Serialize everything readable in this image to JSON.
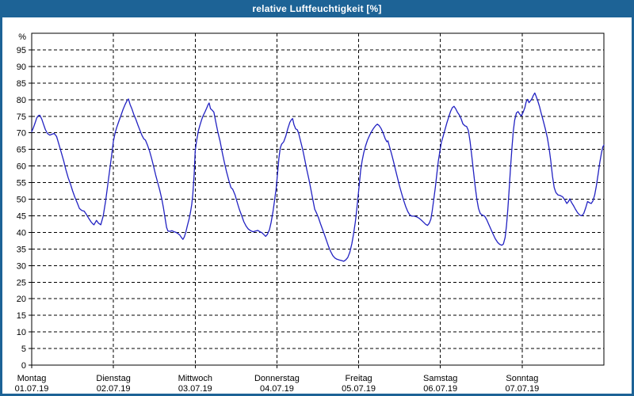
{
  "colors": {
    "titlebar_bg": "#1d6396",
    "title_text": "#ffffff",
    "frame": "#1d6396",
    "plot_bg": "#ffffff",
    "grid": "#000000",
    "axis": "#000000",
    "tick_text": "#000000",
    "line": "#2222c2"
  },
  "chart_data": {
    "type": "line",
    "title": "relative Luftfeuchtigkeit [%]",
    "ylabel": "%",
    "ylim": [
      0,
      100
    ],
    "y_tick_step": 5,
    "y_tick_labels": [
      "0",
      "5",
      "10",
      "15",
      "20",
      "25",
      "30",
      "35",
      "40",
      "45",
      "50",
      "55",
      "60",
      "65",
      "70",
      "75",
      "80",
      "85",
      "90",
      "95"
    ],
    "y_unit_label": "%",
    "xlim_hours": [
      0,
      168
    ],
    "grid": true,
    "legend_position": "none",
    "x_ticks": [
      {
        "label": "Montag",
        "date": "01.07.19"
      },
      {
        "label": "Dienstag",
        "date": "02.07.19"
      },
      {
        "label": "Mittwoch",
        "date": "03.07.19"
      },
      {
        "label": "Donnerstag",
        "date": "04.07.19"
      },
      {
        "label": "Freitag",
        "date": "05.07.19"
      },
      {
        "label": "Samstag",
        "date": "06.07.19"
      },
      {
        "label": "Sonntag",
        "date": "07.07.19"
      }
    ],
    "series": [
      {
        "name": "relative Luftfeuchtigkeit",
        "points": [
          [
            0,
            70.3
          ],
          [
            0.5,
            71.5
          ],
          [
            1,
            73
          ],
          [
            1.5,
            74.5
          ],
          [
            2,
            75.2
          ],
          [
            2.4,
            75.3
          ],
          [
            3,
            74
          ],
          [
            3.5,
            72.5
          ],
          [
            4,
            71
          ],
          [
            4.6,
            69.8
          ],
          [
            5.3,
            69.3
          ],
          [
            6,
            69.6
          ],
          [
            6.6,
            69.8
          ],
          [
            7.3,
            68.9
          ],
          [
            8,
            66.5
          ],
          [
            8.7,
            64
          ],
          [
            9.4,
            61.5
          ],
          [
            10,
            59
          ],
          [
            10.7,
            56.5
          ],
          [
            11.4,
            54.5
          ],
          [
            12,
            52.5
          ],
          [
            12.7,
            50.5
          ],
          [
            13.4,
            48.8
          ],
          [
            14,
            47.2
          ],
          [
            14.7,
            46.6
          ],
          [
            15.4,
            46.4
          ],
          [
            16,
            45.5
          ],
          [
            16.7,
            44.3
          ],
          [
            17.4,
            43.2
          ],
          [
            17.9,
            42.6
          ],
          [
            18.3,
            42.3
          ],
          [
            19,
            43.6
          ],
          [
            19.6,
            42.8
          ],
          [
            20.3,
            42.3
          ],
          [
            21,
            45
          ],
          [
            21.7,
            49.5
          ],
          [
            22.3,
            54
          ],
          [
            23,
            59.5
          ],
          [
            23.5,
            63.5
          ],
          [
            24,
            67.5
          ],
          [
            24.5,
            70
          ],
          [
            25,
            71.7
          ],
          [
            25.6,
            73.5
          ],
          [
            26.2,
            75.2
          ],
          [
            26.8,
            77
          ],
          [
            27.4,
            78.5
          ],
          [
            28,
            79.7
          ],
          [
            28.4,
            80.2
          ],
          [
            28.9,
            78.5
          ],
          [
            29.4,
            77.3
          ],
          [
            30,
            75.5
          ],
          [
            30.6,
            74
          ],
          [
            31.2,
            72.3
          ],
          [
            31.8,
            70.7
          ],
          [
            32.4,
            69.2
          ],
          [
            32.9,
            68.2
          ],
          [
            33.4,
            67.8
          ],
          [
            34,
            66.3
          ],
          [
            34.6,
            64.5
          ],
          [
            35.2,
            62.3
          ],
          [
            35.8,
            59.8
          ],
          [
            36.4,
            57.3
          ],
          [
            37,
            55
          ],
          [
            37.6,
            52.7
          ],
          [
            38.2,
            50
          ],
          [
            38.7,
            47.3
          ],
          [
            39.2,
            44
          ],
          [
            39.6,
            41.5
          ],
          [
            40,
            40.4
          ],
          [
            40.6,
            40.3
          ],
          [
            41.2,
            40.5
          ],
          [
            41.8,
            40.2
          ],
          [
            42.4,
            40
          ],
          [
            43,
            39.6
          ],
          [
            43.5,
            39.2
          ],
          [
            44,
            38.4
          ],
          [
            44.4,
            37.9
          ],
          [
            44.8,
            38.6
          ],
          [
            45.2,
            39.9
          ],
          [
            45.7,
            42
          ],
          [
            46.2,
            44
          ],
          [
            46.6,
            46
          ],
          [
            47,
            48.5
          ],
          [
            47.3,
            51.5
          ],
          [
            47.7,
            57.5
          ],
          [
            48,
            64.5
          ],
          [
            48.4,
            67.5
          ],
          [
            48.9,
            70.5
          ],
          [
            49.4,
            72.3
          ],
          [
            49.9,
            74
          ],
          [
            50.4,
            75.3
          ],
          [
            50.9,
            76.3
          ],
          [
            51.4,
            77.5
          ],
          [
            51.8,
            78.5
          ],
          [
            52.1,
            79
          ],
          [
            52.5,
            77.3
          ],
          [
            53,
            76.8
          ],
          [
            53.5,
            76.2
          ],
          [
            54,
            73.5
          ],
          [
            54.7,
            70
          ],
          [
            55.3,
            67.5
          ],
          [
            56,
            63.8
          ],
          [
            56.6,
            61
          ],
          [
            57.2,
            58.3
          ],
          [
            57.9,
            55.6
          ],
          [
            58.5,
            53.5
          ],
          [
            59,
            53
          ],
          [
            59.7,
            51.3
          ],
          [
            60.4,
            48.8
          ],
          [
            61,
            46.8
          ],
          [
            61.7,
            44.9
          ],
          [
            62.3,
            43.2
          ],
          [
            63,
            41.8
          ],
          [
            63.6,
            41
          ],
          [
            64.3,
            40.5
          ],
          [
            65,
            40.2
          ],
          [
            65.7,
            40.4
          ],
          [
            66.4,
            40.6
          ],
          [
            67,
            40.2
          ],
          [
            67.6,
            39.9
          ],
          [
            68.2,
            39.3
          ],
          [
            68.7,
            38.8
          ],
          [
            69.2,
            39.4
          ],
          [
            69.8,
            40.8
          ],
          [
            70.3,
            43
          ],
          [
            70.8,
            46
          ],
          [
            71.3,
            49.5
          ],
          [
            71.8,
            53.5
          ],
          [
            72.2,
            58
          ],
          [
            72.6,
            62.5
          ],
          [
            73,
            65.5
          ],
          [
            73.4,
            66.6
          ],
          [
            74,
            67.3
          ],
          [
            74.6,
            69
          ],
          [
            75.2,
            71.3
          ],
          [
            75.8,
            73.2
          ],
          [
            76.3,
            74
          ],
          [
            76.6,
            74.3
          ],
          [
            77,
            72.5
          ],
          [
            77.5,
            71.2
          ],
          [
            78,
            70.9
          ],
          [
            78.4,
            69.8
          ],
          [
            79,
            67.3
          ],
          [
            79.6,
            64.8
          ],
          [
            80.2,
            61.8
          ],
          [
            80.8,
            58.8
          ],
          [
            81.4,
            56
          ],
          [
            82,
            52.8
          ],
          [
            82.6,
            49.6
          ],
          [
            83.1,
            47
          ],
          [
            83.6,
            45.9
          ],
          [
            84.2,
            44.4
          ],
          [
            84.8,
            42.6
          ],
          [
            85.4,
            40.9
          ],
          [
            86,
            39.2
          ],
          [
            86.6,
            37.4
          ],
          [
            87.2,
            35.6
          ],
          [
            87.8,
            34.2
          ],
          [
            88.4,
            33
          ],
          [
            89,
            32.3
          ],
          [
            89.6,
            31.9
          ],
          [
            90.3,
            31.7
          ],
          [
            91,
            31.5
          ],
          [
            91.6,
            31.3
          ],
          [
            92.2,
            31.7
          ],
          [
            92.8,
            32.4
          ],
          [
            93.4,
            34
          ],
          [
            94,
            36.6
          ],
          [
            94.5,
            39.5
          ],
          [
            95,
            43
          ],
          [
            95.4,
            46.5
          ],
          [
            95.8,
            50.5
          ],
          [
            96.2,
            54.5
          ],
          [
            96.6,
            58.7
          ],
          [
            97,
            61.5
          ],
          [
            97.5,
            64
          ],
          [
            98,
            66
          ],
          [
            98.6,
            67.8
          ],
          [
            99.2,
            69.2
          ],
          [
            99.8,
            70.4
          ],
          [
            100.4,
            71.4
          ],
          [
            101,
            72.2
          ],
          [
            101.5,
            72.6
          ],
          [
            102,
            72.2
          ],
          [
            102.6,
            71.3
          ],
          [
            103.2,
            69.9
          ],
          [
            103.8,
            68.2
          ],
          [
            104.3,
            67.3
          ],
          [
            104.6,
            67.6
          ],
          [
            105,
            66
          ],
          [
            105.6,
            63.9
          ],
          [
            106.2,
            61.5
          ],
          [
            106.8,
            58.9
          ],
          [
            107.4,
            56.4
          ],
          [
            108,
            54
          ],
          [
            108.6,
            51.8
          ],
          [
            109.2,
            49.7
          ],
          [
            109.8,
            47.8
          ],
          [
            110.4,
            46.3
          ],
          [
            111,
            45.3
          ],
          [
            111.6,
            44.9
          ],
          [
            112.3,
            44.9
          ],
          [
            113,
            44.7
          ],
          [
            113.7,
            44.3
          ],
          [
            114.4,
            43.7
          ],
          [
            115.1,
            43
          ],
          [
            115.7,
            42.4
          ],
          [
            116.2,
            42.1
          ],
          [
            116.7,
            42.7
          ],
          [
            117.2,
            44
          ],
          [
            117.6,
            46.5
          ],
          [
            118,
            49.5
          ],
          [
            118.5,
            53.5
          ],
          [
            119,
            58
          ],
          [
            119.4,
            61.5
          ],
          [
            119.9,
            64.8
          ],
          [
            120.3,
            67.2
          ],
          [
            120.8,
            69
          ],
          [
            121.3,
            70.8
          ],
          [
            121.9,
            73
          ],
          [
            122.5,
            75
          ],
          [
            123,
            76.5
          ],
          [
            123.5,
            77.6
          ],
          [
            124,
            78
          ],
          [
            124.5,
            77.2
          ],
          [
            125,
            76.2
          ],
          [
            125.6,
            75.3
          ],
          [
            126.1,
            74.2
          ],
          [
            126.6,
            72.7
          ],
          [
            127.2,
            72.1
          ],
          [
            127.7,
            71.9
          ],
          [
            128.2,
            70.7
          ],
          [
            128.7,
            67.5
          ],
          [
            129.2,
            63
          ],
          [
            129.7,
            58.5
          ],
          [
            130.2,
            54
          ],
          [
            130.7,
            50
          ],
          [
            131.2,
            47.2
          ],
          [
            131.7,
            45.7
          ],
          [
            132.3,
            45.2
          ],
          [
            133,
            44.9
          ],
          [
            133.6,
            43.8
          ],
          [
            134.2,
            42.4
          ],
          [
            134.9,
            40.8
          ],
          [
            135.5,
            39.4
          ],
          [
            136.1,
            38.1
          ],
          [
            136.8,
            37
          ],
          [
            137.4,
            36.4
          ],
          [
            138,
            36.1
          ],
          [
            138.5,
            36.5
          ],
          [
            139,
            38.5
          ],
          [
            139.4,
            42
          ],
          [
            139.8,
            47
          ],
          [
            140.2,
            53
          ],
          [
            140.6,
            59.5
          ],
          [
            141,
            65.5
          ],
          [
            141.4,
            70.5
          ],
          [
            141.8,
            73.8
          ],
          [
            142.3,
            76
          ],
          [
            142.8,
            76.4
          ],
          [
            143.3,
            75.6
          ],
          [
            143.8,
            75.1
          ],
          [
            144.3,
            76.2
          ],
          [
            144.8,
            77.6
          ],
          [
            145.2,
            79.4
          ],
          [
            145.6,
            80.1
          ],
          [
            146,
            79.1
          ],
          [
            146.4,
            79.6
          ],
          [
            146.9,
            80.3
          ],
          [
            147.3,
            81.3
          ],
          [
            147.7,
            82
          ],
          [
            148.1,
            81
          ],
          [
            148.6,
            79.6
          ],
          [
            149.1,
            77.9
          ],
          [
            149.6,
            75.9
          ],
          [
            150.2,
            73.6
          ],
          [
            150.8,
            71.2
          ],
          [
            151.4,
            68.5
          ],
          [
            151.9,
            65.5
          ],
          [
            152.4,
            61.5
          ],
          [
            152.9,
            57
          ],
          [
            153.4,
            53.5
          ],
          [
            153.9,
            52
          ],
          [
            154.5,
            51.3
          ],
          [
            155.2,
            51.1
          ],
          [
            155.9,
            50.7
          ],
          [
            156.5,
            49.8
          ],
          [
            157.1,
            48.7
          ],
          [
            157.6,
            49.3
          ],
          [
            158,
            50.1
          ],
          [
            158.5,
            49
          ],
          [
            159.1,
            48
          ],
          [
            159.7,
            46.9
          ],
          [
            160.3,
            45.9
          ],
          [
            160.9,
            45.2
          ],
          [
            161.5,
            45
          ],
          [
            162.1,
            45.7
          ],
          [
            162.7,
            47.5
          ],
          [
            163.2,
            49.3
          ],
          [
            163.8,
            48.9
          ],
          [
            164.3,
            48.7
          ],
          [
            164.8,
            49.5
          ],
          [
            165.3,
            51.3
          ],
          [
            165.8,
            54
          ],
          [
            166.3,
            57.5
          ],
          [
            166.8,
            61
          ],
          [
            167.3,
            64
          ],
          [
            167.7,
            65.8
          ],
          [
            168,
            66.3
          ]
        ]
      }
    ]
  }
}
